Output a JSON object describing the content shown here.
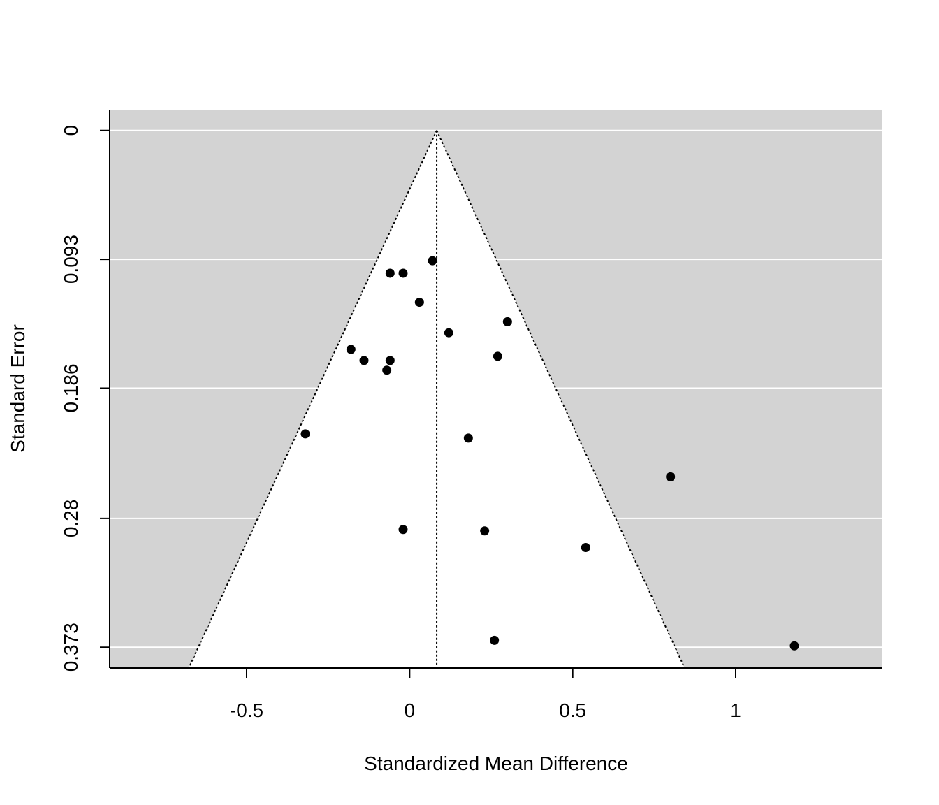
{
  "chart_data": {
    "type": "scatter",
    "title": "",
    "xlabel": "Standardized Mean Difference",
    "ylabel": "Standard Error",
    "xlim": [
      -0.92,
      1.45
    ],
    "ylim": [
      0.388,
      -0.015
    ],
    "y_reversed": true,
    "grid": true,
    "background": "#d3d3d3",
    "funnel_fill": "#ffffff",
    "point_color": "#000000",
    "estimate": 0.083,
    "funnel_z": 1.96,
    "funnel_se_max": 0.388,
    "x_ticks": [
      {
        "value": -0.5,
        "label": "-0.5"
      },
      {
        "value": 0,
        "label": "0"
      },
      {
        "value": 0.5,
        "label": "0.5"
      },
      {
        "value": 1,
        "label": "1"
      }
    ],
    "y_ticks": [
      {
        "value": 0,
        "label": "0"
      },
      {
        "value": 0.093,
        "label": "0.093"
      },
      {
        "value": 0.186,
        "label": "0.186"
      },
      {
        "value": 0.28,
        "label": "0.28"
      },
      {
        "value": 0.373,
        "label": "0.373"
      }
    ],
    "points": [
      {
        "x": 0.07,
        "y": 0.094
      },
      {
        "x": -0.06,
        "y": 0.103
      },
      {
        "x": -0.02,
        "y": 0.103
      },
      {
        "x": 0.03,
        "y": 0.124
      },
      {
        "x": 0.3,
        "y": 0.138
      },
      {
        "x": 0.12,
        "y": 0.146
      },
      {
        "x": -0.18,
        "y": 0.158
      },
      {
        "x": -0.14,
        "y": 0.166
      },
      {
        "x": -0.06,
        "y": 0.166
      },
      {
        "x": 0.27,
        "y": 0.163
      },
      {
        "x": -0.07,
        "y": 0.173
      },
      {
        "x": -0.32,
        "y": 0.219
      },
      {
        "x": 0.18,
        "y": 0.222
      },
      {
        "x": 0.8,
        "y": 0.25
      },
      {
        "x": -0.02,
        "y": 0.288
      },
      {
        "x": 0.23,
        "y": 0.289
      },
      {
        "x": 0.54,
        "y": 0.301
      },
      {
        "x": 0.26,
        "y": 0.368
      },
      {
        "x": 1.18,
        "y": 0.372
      }
    ]
  }
}
